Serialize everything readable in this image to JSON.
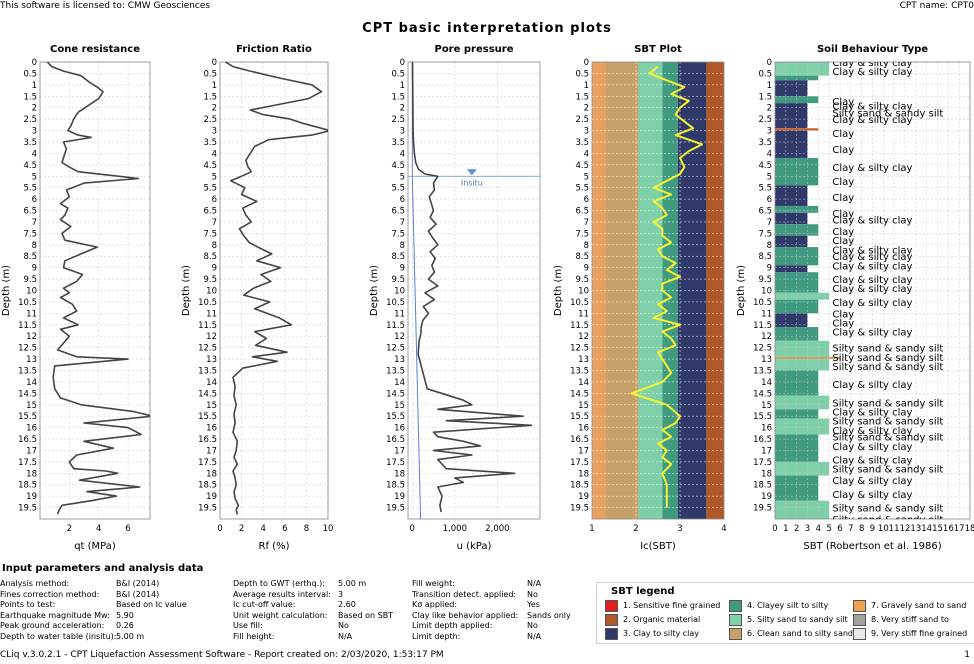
{
  "header": {
    "license": "This software is licensed to: CMW Geosciences",
    "cpt_name": "CPT name: CPT0"
  },
  "report_title": "CPT basic interpretation plots",
  "chart_data": [
    {
      "type": "line",
      "title": "Cone resistance",
      "xlabel": "qt (MPa)",
      "ylabel": "Depth (m)",
      "xlim": [
        0,
        7.5
      ],
      "ylim": [
        0,
        20
      ],
      "xticks": [
        "2",
        "4",
        "6"
      ],
      "x": [
        0.5,
        0.8,
        1.6,
        2.8,
        3.4,
        3.9,
        4.3,
        4.0,
        3.3,
        2.6,
        2.3,
        2.1,
        1.9,
        2.6,
        3.5,
        1.6,
        1.8,
        1.7,
        1.5,
        2.0,
        2.6,
        6.7,
        3.0,
        1.8,
        2.0,
        1.4,
        1.9,
        1.7,
        1.4,
        2.1,
        1.5,
        1.7,
        3.9,
        2.8,
        1.7,
        1.6,
        2.9,
        2.5,
        1.6,
        2.0,
        1.4,
        2.2,
        2.5,
        1.6,
        2.6,
        1.4,
        2.0,
        1.6,
        1.2,
        2.5,
        6.0,
        1.0,
        0.9,
        1.0,
        1.4,
        2.8,
        6.4,
        7.7,
        3.0,
        6.0,
        6.9,
        3.0,
        5.0,
        2.5,
        2.0,
        2.3,
        4.5,
        5.3,
        2.7,
        6.8,
        3.2,
        5.2,
        3.5,
        1.5,
        1.3,
        1.2
      ],
      "y": [
        0,
        0.2,
        0.4,
        0.6,
        0.9,
        1.1,
        1.3,
        1.6,
        1.9,
        2.2,
        2.5,
        2.8,
        3.0,
        3.2,
        3.3,
        3.5,
        3.8,
        4.0,
        4.4,
        4.6,
        4.8,
        5.1,
        5.3,
        5.6,
        5.9,
        6.2,
        6.4,
        6.7,
        6.9,
        7.2,
        7.5,
        7.8,
        8.1,
        8.4,
        8.7,
        9.0,
        9.3,
        9.6,
        9.9,
        10.1,
        10.3,
        10.6,
        10.9,
        11.2,
        11.5,
        11.7,
        12.0,
        12.3,
        12.6,
        12.9,
        13.0,
        13.3,
        13.8,
        14.3,
        14.7,
        15.0,
        15.3,
        15.5,
        15.8,
        16.0,
        16.3,
        16.6,
        16.9,
        17.2,
        17.5,
        17.8,
        17.9,
        18.0,
        18.3,
        18.6,
        18.8,
        19.0,
        19.2,
        19.4,
        19.6,
        19.8
      ]
    },
    {
      "type": "line",
      "title": "Friction Ratio",
      "xlabel": "Rf (%)",
      "ylabel": "Depth (m)",
      "xlim": [
        0,
        10
      ],
      "ylim": [
        0,
        20
      ],
      "xticks": [
        "0",
        "2",
        "4",
        "6",
        "8",
        "10"
      ],
      "x": [
        0.5,
        1.2,
        2.8,
        5.5,
        8.5,
        9.4,
        8.2,
        5.0,
        2.8,
        4.0,
        6.5,
        7.8,
        10.2,
        8.5,
        4.5,
        3.2,
        2.8,
        2.4,
        2.6,
        2.9,
        2.0,
        1.0,
        2.3,
        2.0,
        3.4,
        2.1,
        2.4,
        2.9,
        1.8,
        2.2,
        2.7,
        3.5,
        4.8,
        3.4,
        5.6,
        3.8,
        4.7,
        3.1,
        2.2,
        4.6,
        3.2,
        5.5,
        6.6,
        3.2,
        4.3,
        3.3,
        6.2,
        3.0,
        5.3,
        2.1,
        1.2,
        1.4,
        1.3,
        1.5,
        1.3,
        1.4,
        1.2,
        1.6,
        1.5,
        1.3,
        1.6,
        1.2,
        1.4,
        1.5,
        1.3,
        1.4,
        1.7,
        1.5,
        1.6
      ],
      "y": [
        0,
        0.2,
        0.4,
        0.7,
        1.0,
        1.3,
        1.6,
        1.9,
        2.1,
        2.3,
        2.5,
        2.7,
        3.0,
        3.2,
        3.4,
        3.7,
        4.0,
        4.3,
        4.6,
        4.8,
        5.0,
        5.2,
        5.5,
        5.8,
        6.1,
        6.4,
        6.7,
        7.0,
        7.3,
        7.6,
        7.9,
        8.1,
        8.4,
        8.7,
        9.0,
        9.3,
        9.6,
        9.9,
        10.2,
        10.5,
        10.8,
        11.2,
        11.5,
        11.8,
        12.1,
        12.4,
        12.7,
        12.9,
        13.1,
        13.4,
        13.8,
        14.2,
        14.6,
        15.0,
        15.4,
        15.8,
        16.2,
        16.6,
        17.0,
        17.3,
        17.6,
        17.9,
        18.2,
        18.5,
        18.8,
        19.1,
        19.4,
        19.6,
        19.8
      ]
    },
    {
      "type": "line",
      "title": "Pore pressure",
      "xlabel": "u (kPa)",
      "ylabel": "Depth (m)",
      "xlim": [
        -100,
        3000
      ],
      "ylim": [
        0,
        20
      ],
      "xticks": [
        "0",
        "1,000",
        "2,000"
      ],
      "annotation": "Insitu",
      "water_table_depth": 5.0,
      "series": [
        {
          "name": "u2",
          "x": [
            5,
            10,
            15,
            20,
            30,
            50,
            80,
            150,
            300,
            600,
            500,
            520,
            400,
            450,
            500,
            420,
            560,
            380,
            480,
            600,
            420,
            540,
            460,
            520,
            380,
            600,
            300,
            520,
            260,
            380,
            250,
            210,
            200,
            160,
            150,
            140,
            350,
            1200,
            1400,
            600,
            2600,
            800,
            2800,
            500,
            600,
            1200,
            1600,
            500,
            1400,
            600,
            800,
            2400,
            1000,
            1200,
            600,
            700,
            650,
            680
          ],
          "y": [
            0,
            1,
            2,
            3,
            3.5,
            4,
            4.4,
            4.7,
            4.9,
            5.0,
            5.3,
            5.6,
            5.9,
            6.2,
            6.5,
            6.8,
            7.1,
            7.4,
            7.7,
            8.0,
            8.3,
            8.6,
            8.9,
            9.2,
            9.5,
            9.8,
            10.1,
            10.4,
            10.7,
            11.0,
            11.3,
            11.6,
            11.9,
            12.2,
            12.5,
            12.8,
            14.3,
            14.8,
            15.0,
            15.2,
            15.5,
            15.7,
            15.9,
            16.2,
            16.4,
            16.6,
            16.8,
            17.0,
            17.2,
            17.4,
            17.8,
            18.0,
            18.2,
            18.4,
            18.6,
            19.0,
            19.4,
            19.7
          ]
        },
        {
          "name": "u0",
          "x": [
            0,
            0,
            196
          ],
          "y": [
            0,
            5,
            20
          ]
        }
      ]
    },
    {
      "type": "line",
      "title": "SBT Plot",
      "xlabel": "Ic(SBT)",
      "ylabel": "Depth (m)",
      "xlim": [
        1,
        4
      ],
      "ylim": [
        0,
        20
      ],
      "xticks": [
        "1",
        "2",
        "3",
        "4"
      ],
      "zone_colors": [
        "#c8a06a",
        "#e8a060",
        "#7fd0a8",
        "#3f9a80",
        "#303a6a",
        "#b05828"
      ],
      "x": [
        2.5,
        2.3,
        2.7,
        3.1,
        2.8,
        3.2,
        3.0,
        2.9,
        3.1,
        3.3,
        2.9,
        3.2,
        3.5,
        3.2,
        3.0,
        3.1,
        3.0,
        2.7,
        2.4,
        2.8,
        2.4,
        2.6,
        2.7,
        2.4,
        2.6,
        2.6,
        2.8,
        2.5,
        2.6,
        2.9,
        2.7,
        3.0,
        2.6,
        2.6,
        2.8,
        2.5,
        2.7,
        2.4,
        3.0,
        2.6,
        2.8,
        2.9,
        2.5,
        2.6,
        2.7,
        2.8,
        2.6,
        1.9,
        2.7,
        3.0,
        2.9,
        2.6,
        2.8,
        2.5,
        2.7,
        2.6,
        2.8,
        2.6,
        2.7,
        2.7
      ],
      "y": [
        0.2,
        0.5,
        0.8,
        1.1,
        1.4,
        1.7,
        2.0,
        2.3,
        2.6,
        2.9,
        3.2,
        3.4,
        3.6,
        3.9,
        4.2,
        4.6,
        4.9,
        5.2,
        5.5,
        5.8,
        6.1,
        6.4,
        6.7,
        7.0,
        7.3,
        7.6,
        7.9,
        8.2,
        8.5,
        8.8,
        9.1,
        9.4,
        9.7,
        10.0,
        10.3,
        10.6,
        10.9,
        11.2,
        11.5,
        11.8,
        12.1,
        12.4,
        12.7,
        13.0,
        13.3,
        13.6,
        14.0,
        14.5,
        15.0,
        15.5,
        15.8,
        16.1,
        16.4,
        16.7,
        17.0,
        17.3,
        17.6,
        18.0,
        18.5,
        19.5
      ]
    },
    {
      "type": "bar",
      "title": "Soil Behaviour Type",
      "xlabel": "SBT (Robertson et al. 1986)",
      "ylabel": "Depth (m)",
      "xlim": [
        0,
        18
      ],
      "ylim": [
        0,
        20
      ],
      "xticks": [
        "0",
        "1",
        "2",
        "3",
        "4",
        "5",
        "6",
        "7",
        "8",
        "9",
        "10",
        "11",
        "12",
        "13",
        "14",
        "15",
        "16",
        "17",
        "18"
      ],
      "labels": [
        {
          "text": "Clay & silty clay",
          "depth": 0.0
        },
        {
          "text": "Clay & silty clay",
          "depth": 0.4
        },
        {
          "text": "Clay",
          "depth": 1.7
        },
        {
          "text": "Clay & silty clay",
          "depth": 1.9
        },
        {
          "text": "Silty sand & sandy silt",
          "depth": 2.2
        },
        {
          "text": "Clay & silty clay",
          "depth": 2.5
        },
        {
          "text": "Clay",
          "depth": 3.1
        },
        {
          "text": "Clay",
          "depth": 3.8
        },
        {
          "text": "Clay & silty clay",
          "depth": 4.6
        },
        {
          "text": "Clay",
          "depth": 5.2
        },
        {
          "text": "Clay",
          "depth": 5.9
        },
        {
          "text": "Clay",
          "depth": 6.6
        },
        {
          "text": "Clay & silty clay",
          "depth": 6.9
        },
        {
          "text": "Clay",
          "depth": 7.4
        },
        {
          "text": "Clay",
          "depth": 7.8
        },
        {
          "text": "Clay & silty clay",
          "depth": 8.2
        },
        {
          "text": "Clay & silty clay",
          "depth": 8.5
        },
        {
          "text": "Clay & silty clay",
          "depth": 8.9
        },
        {
          "text": "Clay & silty clay",
          "depth": 9.5
        },
        {
          "text": "Clay & silty clay",
          "depth": 9.9
        },
        {
          "text": "Clay & silty clay",
          "depth": 10.5
        },
        {
          "text": "Clay",
          "depth": 11.0
        },
        {
          "text": "Clay",
          "depth": 11.4
        },
        {
          "text": "Clay & silty clay",
          "depth": 11.8
        },
        {
          "text": "Silty sand & sandy silt",
          "depth": 12.5
        },
        {
          "text": "Silty sand & sandy silt",
          "depth": 12.9
        },
        {
          "text": "Silty sand & sandy silt",
          "depth": 13.3
        },
        {
          "text": "Clay & silty clay",
          "depth": 14.1
        },
        {
          "text": "Silty sand & sandy silt",
          "depth": 14.9
        },
        {
          "text": "Clay & silty clay",
          "depth": 15.3
        },
        {
          "text": "Silty sand & sandy silt",
          "depth": 15.7
        },
        {
          "text": "Clay & silty clay",
          "depth": 16.1
        },
        {
          "text": "Silty sand & sandy silt",
          "depth": 16.4
        },
        {
          "text": "Clay & silty clay",
          "depth": 16.8
        },
        {
          "text": "Clay & silty clay",
          "depth": 17.4
        },
        {
          "text": "Silty sand & sandy silt",
          "depth": 17.8
        },
        {
          "text": "Clay & silty clay",
          "depth": 18.3
        },
        {
          "text": "Clay & silty clay",
          "depth": 18.9
        },
        {
          "text": "Silty sand & sandy silt",
          "depth": 19.5
        },
        {
          "text": "Silty sand & sandy silt",
          "depth": 20.0
        }
      ],
      "bands": [
        {
          "top": 0.0,
          "bottom": 0.6,
          "sbt": 5,
          "color": "#7fd0a8"
        },
        {
          "top": 0.6,
          "bottom": 0.8,
          "sbt": 4,
          "color": "#3f9a80"
        },
        {
          "top": 0.8,
          "bottom": 1.5,
          "sbt": 3,
          "color": "#303a6a"
        },
        {
          "top": 1.5,
          "bottom": 1.8,
          "sbt": 4,
          "color": "#3f9a80"
        },
        {
          "top": 1.8,
          "bottom": 2.9,
          "sbt": 3,
          "color": "#303a6a"
        },
        {
          "top": 2.9,
          "bottom": 3.0,
          "sbt": 4,
          "color": "#c86030"
        },
        {
          "top": 3.0,
          "bottom": 4.2,
          "sbt": 3,
          "color": "#303a6a"
        },
        {
          "top": 4.2,
          "bottom": 4.9,
          "sbt": 4,
          "color": "#3f9a80"
        },
        {
          "top": 4.9,
          "bottom": 5.4,
          "sbt": 4,
          "color": "#3f9a80"
        },
        {
          "top": 5.4,
          "bottom": 6.3,
          "sbt": 3,
          "color": "#303a6a"
        },
        {
          "top": 6.3,
          "bottom": 6.6,
          "sbt": 4,
          "color": "#3f9a80"
        },
        {
          "top": 6.6,
          "bottom": 7.1,
          "sbt": 3,
          "color": "#303a6a"
        },
        {
          "top": 7.1,
          "bottom": 7.6,
          "sbt": 4,
          "color": "#3f9a80"
        },
        {
          "top": 7.6,
          "bottom": 8.1,
          "sbt": 3,
          "color": "#303a6a"
        },
        {
          "top": 8.1,
          "bottom": 8.9,
          "sbt": 4,
          "color": "#3f9a80"
        },
        {
          "top": 8.9,
          "bottom": 9.2,
          "sbt": 3,
          "color": "#303a6a"
        },
        {
          "top": 9.2,
          "bottom": 10.1,
          "sbt": 4,
          "color": "#3f9a80"
        },
        {
          "top": 10.1,
          "bottom": 10.4,
          "sbt": 5,
          "color": "#7fd0a8"
        },
        {
          "top": 10.4,
          "bottom": 11.0,
          "sbt": 4,
          "color": "#3f9a80"
        },
        {
          "top": 11.0,
          "bottom": 11.6,
          "sbt": 3,
          "color": "#303a6a"
        },
        {
          "top": 11.6,
          "bottom": 12.2,
          "sbt": 4,
          "color": "#3f9a80"
        },
        {
          "top": 12.2,
          "bottom": 12.9,
          "sbt": 5,
          "color": "#7fd0a8"
        },
        {
          "top": 12.9,
          "bottom": 13.0,
          "sbt": 6,
          "color": "#c8a06a"
        },
        {
          "top": 13.0,
          "bottom": 13.5,
          "sbt": 5,
          "color": "#7fd0a8"
        },
        {
          "top": 13.5,
          "bottom": 14.6,
          "sbt": 4,
          "color": "#3f9a80"
        },
        {
          "top": 14.6,
          "bottom": 15.2,
          "sbt": 5,
          "color": "#7fd0a8"
        },
        {
          "top": 15.2,
          "bottom": 15.6,
          "sbt": 4,
          "color": "#3f9a80"
        },
        {
          "top": 15.6,
          "bottom": 16.3,
          "sbt": 5,
          "color": "#7fd0a8"
        },
        {
          "top": 16.3,
          "bottom": 17.5,
          "sbt": 4,
          "color": "#3f9a80"
        },
        {
          "top": 17.5,
          "bottom": 18.1,
          "sbt": 5,
          "color": "#7fd0a8"
        },
        {
          "top": 18.1,
          "bottom": 19.2,
          "sbt": 4,
          "color": "#3f9a80"
        },
        {
          "top": 19.2,
          "bottom": 20.0,
          "sbt": 5,
          "color": "#7fd0a8"
        }
      ]
    }
  ],
  "params": {
    "title": "Input parameters and analysis data",
    "col1": [
      {
        "label": "Analysis method:",
        "value": "B&I (2014)"
      },
      {
        "label": "Fines correction method:",
        "value": "B&I (2014)"
      },
      {
        "label": "Points to test:",
        "value": "Based on Ic value"
      },
      {
        "label": "Earthquake magnitude Mw:",
        "value": "5.90"
      },
      {
        "label": "Peak ground acceleration:",
        "value": "0.26"
      },
      {
        "label": "Depth to water table (insitu):",
        "value": "5.00 m"
      }
    ],
    "col2": [
      {
        "label": "Depth to GWT (erthq.):",
        "value": "5.00 m"
      },
      {
        "label": "Average results interval:",
        "value": "3"
      },
      {
        "label": "Ic cut-off value:",
        "value": "2.60"
      },
      {
        "label": "Unit weight calculation:",
        "value": "Based on SBT"
      },
      {
        "label": "Use fill:",
        "value": "No"
      },
      {
        "label": "Fill height:",
        "value": "N/A"
      }
    ],
    "col3": [
      {
        "label": "Fill weight:",
        "value": "N/A"
      },
      {
        "label": "Transition detect. applied:",
        "value": "No"
      },
      {
        "label": "Kσ applied:",
        "value": "Yes"
      },
      {
        "label": "Clay like behavior applied:",
        "value": "Sands only"
      },
      {
        "label": "Limit depth applied:",
        "value": "No"
      },
      {
        "label": "Limit depth:",
        "value": "N/A"
      }
    ]
  },
  "legend": {
    "title": "SBT legend",
    "items": [
      {
        "label": "1. Sensitive fine grained",
        "color": "#e02020"
      },
      {
        "label": "2. Organic material",
        "color": "#b05828"
      },
      {
        "label": "3. Clay to silty clay",
        "color": "#303a6a"
      },
      {
        "label": "4. Clayey silt to silty",
        "color": "#3f9a80"
      },
      {
        "label": "5. Silty sand to sandy silt",
        "color": "#7fd0a8"
      },
      {
        "label": "6. Clean sand to silty sand",
        "color": "#c8a06a"
      },
      {
        "label": "7. Gravely sand to sand",
        "color": "#f0a050"
      },
      {
        "label": "8. Very stiff sand to",
        "color": "#a0a0a0"
      },
      {
        "label": "9. Very stiff fine grained",
        "color": "#e8e8e8"
      }
    ]
  },
  "footer": {
    "text": "CLiq v.3.0.2.1 - CPT Liquefaction Assessment Software - Report created on: 2/03/2020, 1:53:17 PM",
    "page": "1"
  }
}
